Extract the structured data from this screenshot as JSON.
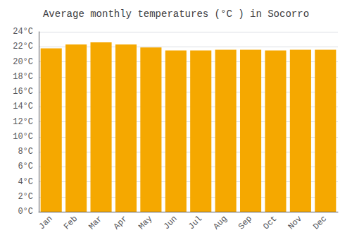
{
  "chart_data": {
    "type": "bar",
    "title": "Average monthly temperatures (°C ) in Socorro",
    "categories": [
      "Jan",
      "Feb",
      "Mar",
      "Apr",
      "May",
      "Jun",
      "Jul",
      "Aug",
      "Sep",
      "Oct",
      "Nov",
      "Dec"
    ],
    "values": [
      21.8,
      22.3,
      22.6,
      22.3,
      21.9,
      21.5,
      21.5,
      21.6,
      21.6,
      21.5,
      21.6,
      21.6
    ],
    "color": "#F5A800",
    "ylim": [
      0,
      24
    ],
    "yticks": [
      {
        "value": 0,
        "label": "0°C"
      },
      {
        "value": 2,
        "label": "2°C"
      },
      {
        "value": 4,
        "label": "4°C"
      },
      {
        "value": 6,
        "label": "6°C"
      },
      {
        "value": 8,
        "label": "8°C"
      },
      {
        "value": 10,
        "label": "10°C"
      },
      {
        "value": 12,
        "label": "12°C"
      },
      {
        "value": 14,
        "label": "14°C"
      },
      {
        "value": 16,
        "label": "16°C"
      },
      {
        "value": 18,
        "label": "18°C"
      },
      {
        "value": 20,
        "label": "20°C"
      },
      {
        "value": 22,
        "label": "22°C"
      },
      {
        "value": 24,
        "label": "24°C"
      }
    ],
    "grid": true
  }
}
